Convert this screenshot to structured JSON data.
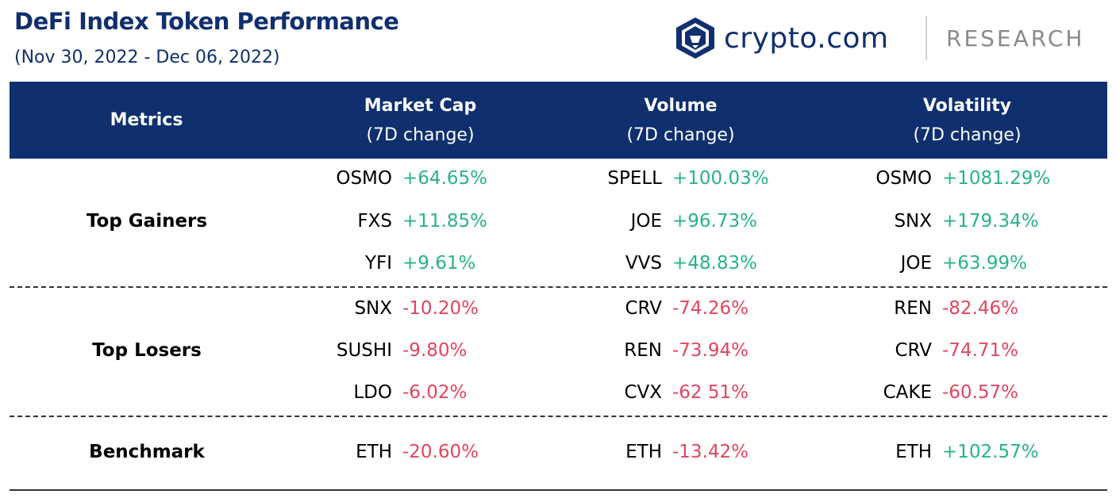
{
  "title": "DeFi Index Token Performance",
  "subtitle": "(Nov 30, 2022 - Dec 06, 2022)",
  "brand": {
    "name": "crypto.com",
    "research": "RESEARCH"
  },
  "colors": {
    "navy": "#0f2f6e",
    "positive": "#28b28c",
    "negative": "#e2455f"
  },
  "columns": [
    {
      "main": "Metrics",
      "sub": ""
    },
    {
      "main": "Market Cap",
      "sub": "(7D change)"
    },
    {
      "main": "Volume",
      "sub": "(7D change)"
    },
    {
      "main": "Volatility",
      "sub": "(7D change)"
    }
  ],
  "sections": [
    {
      "label": "Top Gainers",
      "rows": [
        [
          {
            "token": "OSMO",
            "value": "+64.65%"
          },
          {
            "token": "SPELL",
            "value": "+100.03%"
          },
          {
            "token": "OSMO",
            "value": "+1081.29%"
          }
        ],
        [
          {
            "token": "FXS",
            "value": "+11.85%"
          },
          {
            "token": "JOE",
            "value": "+96.73%"
          },
          {
            "token": "SNX",
            "value": "+179.34%"
          }
        ],
        [
          {
            "token": "YFI",
            "value": "+9.61%"
          },
          {
            "token": "VVS",
            "value": "+48.83%"
          },
          {
            "token": "JOE",
            "value": "+63.99%"
          }
        ]
      ]
    },
    {
      "label": "Top Losers",
      "rows": [
        [
          {
            "token": "SNX",
            "value": "-10.20%"
          },
          {
            "token": "CRV",
            "value": "-74.26%"
          },
          {
            "token": "REN",
            "value": "-82.46%"
          }
        ],
        [
          {
            "token": "SUSHI",
            "value": "-9.80%"
          },
          {
            "token": "REN",
            "value": "-73.94%"
          },
          {
            "token": "CRV",
            "value": "-74.71%"
          }
        ],
        [
          {
            "token": "LDO",
            "value": "-6.02%"
          },
          {
            "token": "CVX",
            "value": "-62 51%"
          },
          {
            "token": "CAKE",
            "value": "-60.57%"
          }
        ]
      ]
    },
    {
      "label": "Benchmark",
      "rows": [
        [
          {
            "token": "ETH",
            "value": "-20.60%"
          },
          {
            "token": "ETH",
            "value": "-13.42%"
          },
          {
            "token": "ETH",
            "value": "+102.57%"
          }
        ]
      ]
    }
  ]
}
